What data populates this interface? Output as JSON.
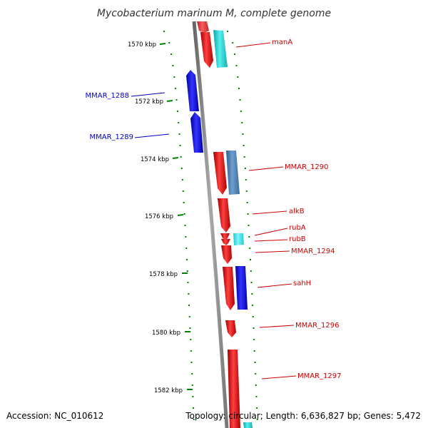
{
  "title": "Mycobacterium marinum M, complete genome",
  "footer": {
    "accession": "Accession: NC_010612",
    "topology": "Topology: circular; Length: 6,636,827 bp; Genes: 5,472"
  },
  "colors": {
    "forward_gene_label": "#cc0000",
    "reverse_gene_label": "#0000cc",
    "backbone": "#888888",
    "gc_ticks": "#008000"
  },
  "kbp_ticks": [
    {
      "kbp": 1570,
      "label": "1570 kbp"
    },
    {
      "kbp": 1572,
      "label": "1572 kbp"
    },
    {
      "kbp": 1574,
      "label": "1574 kbp"
    },
    {
      "kbp": 1576,
      "label": "1576 kbp"
    },
    {
      "kbp": 1578,
      "label": "1578 kbp"
    },
    {
      "kbp": 1580,
      "label": "1580 kbp"
    },
    {
      "kbp": 1582,
      "label": "1582 kbp"
    }
  ],
  "genes": [
    {
      "name": "manA",
      "strand": "+",
      "color": "#ee1111"
    },
    {
      "name": "MMAR_1288",
      "strand": "-",
      "color": "#1111dd"
    },
    {
      "name": "MMAR_1289",
      "strand": "-",
      "color": "#1111dd"
    },
    {
      "name": "MMAR_1290",
      "strand": "+",
      "color": "#ee1111"
    },
    {
      "name": "alkB",
      "strand": "+",
      "color": "#ee1111"
    },
    {
      "name": "rubA",
      "strand": "+",
      "color": "#ee1111"
    },
    {
      "name": "rubB",
      "strand": "+",
      "color": "#ee1111"
    },
    {
      "name": "MMAR_1294",
      "strand": "+",
      "color": "#ee1111"
    },
    {
      "name": "sahH",
      "strand": "+",
      "color": "#ee1111"
    },
    {
      "name": "MMAR_1296",
      "strand": "+",
      "color": "#ee1111"
    },
    {
      "name": "MMAR_1297",
      "strand": "+",
      "color": "#ee1111"
    }
  ],
  "cog_blocks": [
    {
      "category": "cyan",
      "color": "#22cccc"
    },
    {
      "category": "steel-blue",
      "color": "#4a7fb0"
    },
    {
      "category": "light-cyan",
      "color": "#33e0e8"
    },
    {
      "category": "blue",
      "color": "#1111dd"
    },
    {
      "category": "cyan-bottom",
      "color": "#22cccc"
    }
  ]
}
